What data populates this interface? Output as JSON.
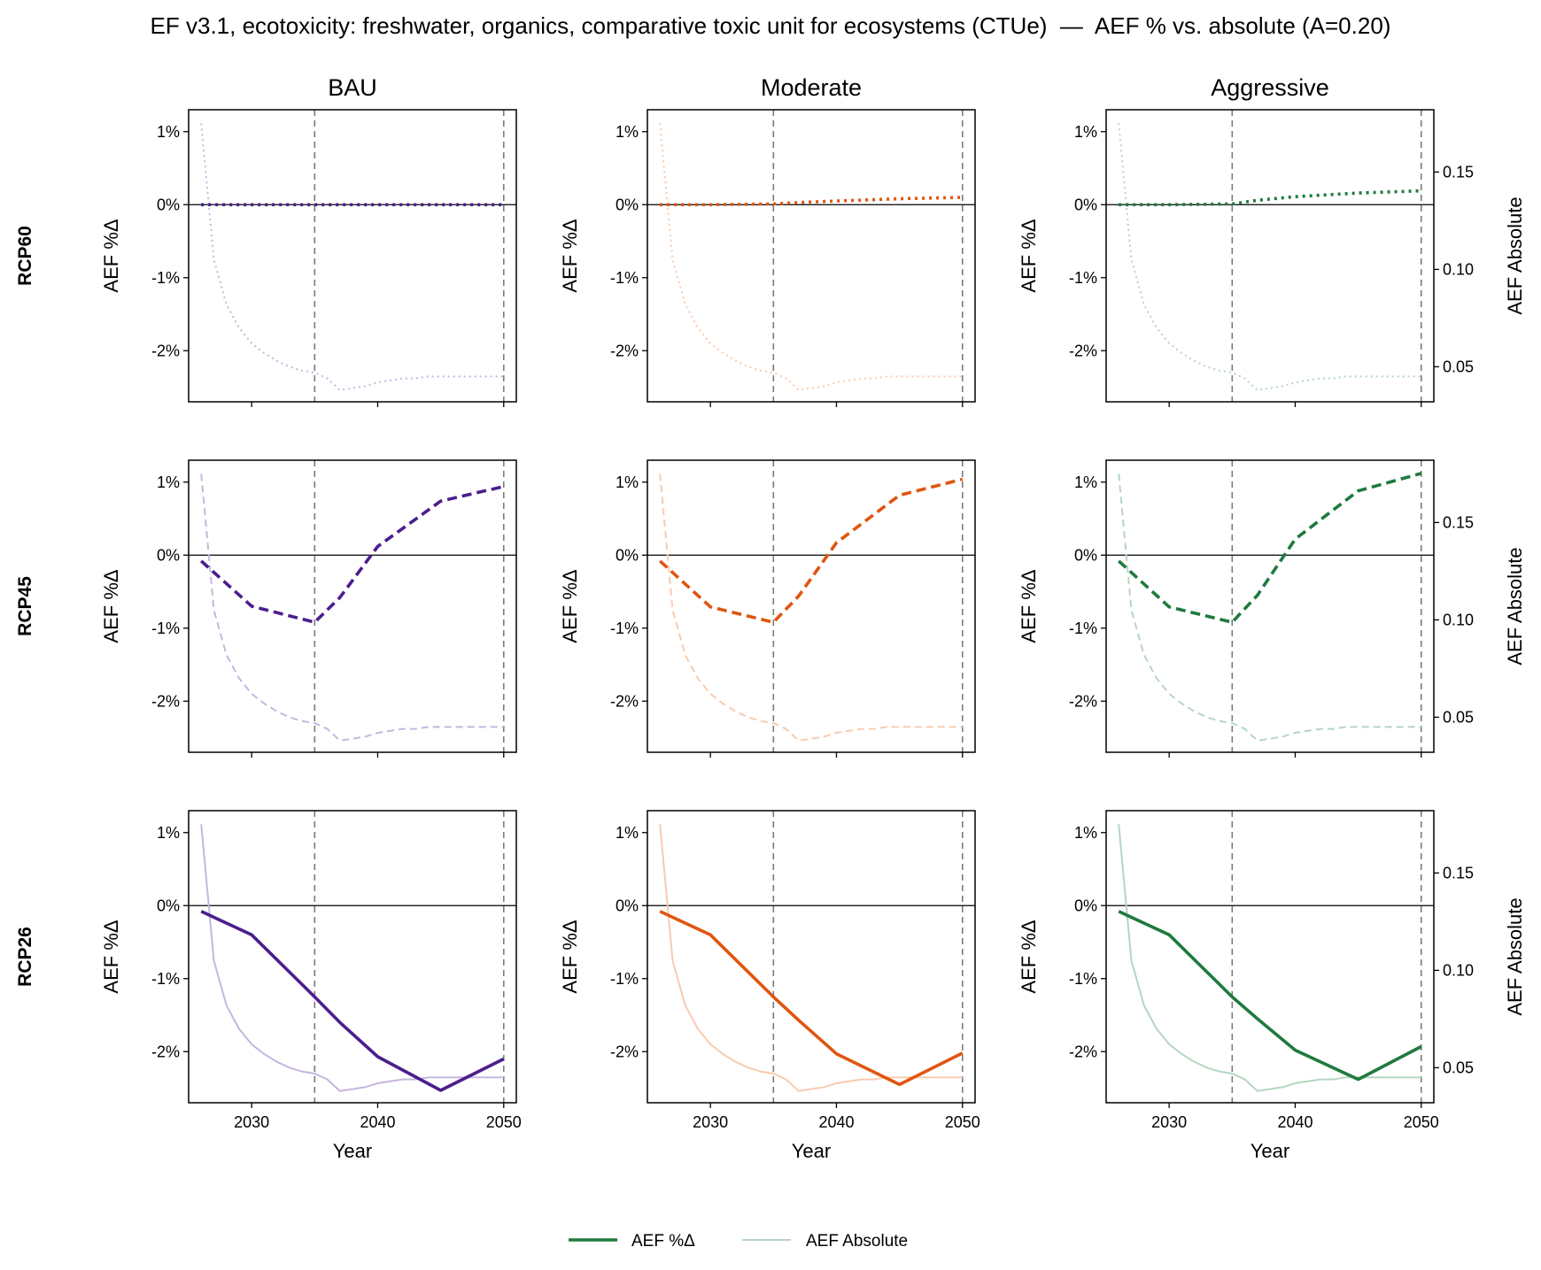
{
  "chart_data": {
    "type": "line",
    "title": "EF v3.1, ecotoxicity: freshwater, organics, comparative toxic unit for ecosystems (CTUe)  —  AEF % vs. absolute (A=0.20)",
    "columns": [
      "BAU",
      "Moderate",
      "Aggressive"
    ],
    "rows": [
      "RCP60",
      "RCP45",
      "RCP26"
    ],
    "xlabel": "Year",
    "ylabel_left": "AEF %Δ",
    "ylabel_right": "AEF Absolute",
    "xlim": [
      2025,
      2051
    ],
    "ylim_pct": [
      -2.7,
      1.3
    ],
    "ylim_abs": [
      0.032,
      0.182
    ],
    "x_ticks": [
      2030,
      2040,
      2050
    ],
    "y_ticks_pct": [
      1,
      0,
      -1,
      -2
    ],
    "y_tick_labels_pct": [
      "1%",
      "0%",
      "-1%",
      "-2%"
    ],
    "y_ticks_abs": [
      0.15,
      0.1,
      0.05
    ],
    "y_tick_labels_abs": [
      "0.15",
      "0.10",
      "0.05"
    ],
    "reference_lines_x": [
      2035,
      2050
    ],
    "colors": {
      "BAU": "#4b1e8e",
      "Moderate": "#e05510",
      "Aggressive": "#1f7a3e"
    },
    "light_colors": {
      "BAU": "#c6b6df",
      "Moderate": "#f7cbb0",
      "Aggressive": "#b5d6c1"
    },
    "line_styles": {
      "RCP60": "dotted",
      "RCP45": "dashed",
      "RCP26": "solid"
    },
    "legend": {
      "placement": "bottom-center",
      "entries": [
        "AEF %Δ",
        "AEF Absolute"
      ]
    },
    "absolute_series": {
      "x": [
        2026,
        2027,
        2028,
        2029,
        2030,
        2031,
        2032,
        2033,
        2034,
        2035,
        2036,
        2037,
        2038,
        2039,
        2040,
        2041,
        2042,
        2043,
        2044,
        2045,
        2046,
        2047,
        2048,
        2049,
        2050
      ],
      "y": [
        0.175,
        0.105,
        0.082,
        0.07,
        0.062,
        0.057,
        0.053,
        0.05,
        0.048,
        0.047,
        0.044,
        0.038,
        0.039,
        0.04,
        0.042,
        0.043,
        0.044,
        0.044,
        0.045,
        0.045,
        0.045,
        0.045,
        0.045,
        0.045,
        0.045
      ]
    },
    "pct_series": {
      "RCP60": {
        "BAU": {
          "x": [
            2026,
            2030,
            2035,
            2037,
            2040,
            2045,
            2050
          ],
          "y": [
            0,
            0,
            0,
            0,
            0,
            0,
            0
          ]
        },
        "Moderate": {
          "x": [
            2026,
            2030,
            2035,
            2037,
            2040,
            2045,
            2050
          ],
          "y": [
            0,
            0,
            0.01,
            0.03,
            0.05,
            0.08,
            0.1
          ]
        },
        "Aggressive": {
          "x": [
            2026,
            2030,
            2035,
            2037,
            2040,
            2045,
            2050
          ],
          "y": [
            0,
            0,
            0.01,
            0.06,
            0.11,
            0.16,
            0.19
          ]
        }
      },
      "RCP45": {
        "BAU": {
          "x": [
            2026,
            2030,
            2035,
            2037,
            2040,
            2045,
            2050
          ],
          "y": [
            -0.08,
            -0.7,
            -0.92,
            -0.58,
            0.12,
            0.74,
            0.94
          ]
        },
        "Moderate": {
          "x": [
            2026,
            2030,
            2035,
            2037,
            2040,
            2045,
            2050
          ],
          "y": [
            -0.08,
            -0.71,
            -0.92,
            -0.56,
            0.17,
            0.82,
            1.04
          ]
        },
        "Aggressive": {
          "x": [
            2026,
            2030,
            2035,
            2037,
            2040,
            2045,
            2050
          ],
          "y": [
            -0.08,
            -0.71,
            -0.92,
            -0.55,
            0.22,
            0.88,
            1.12
          ]
        }
      },
      "RCP26": {
        "BAU": {
          "x": [
            2026,
            2030,
            2035,
            2037,
            2040,
            2045,
            2050
          ],
          "y": [
            -0.08,
            -0.4,
            -1.25,
            -1.6,
            -2.07,
            -2.53,
            -2.1
          ]
        },
        "Moderate": {
          "x": [
            2026,
            2030,
            2035,
            2037,
            2040,
            2045,
            2050
          ],
          "y": [
            -0.08,
            -0.4,
            -1.25,
            -1.57,
            -2.03,
            -2.45,
            -2.02
          ]
        },
        "Aggressive": {
          "x": [
            2026,
            2030,
            2035,
            2037,
            2040,
            2045,
            2050
          ],
          "y": [
            -0.08,
            -0.4,
            -1.25,
            -1.55,
            -1.98,
            -2.38,
            -1.93
          ]
        }
      }
    }
  }
}
